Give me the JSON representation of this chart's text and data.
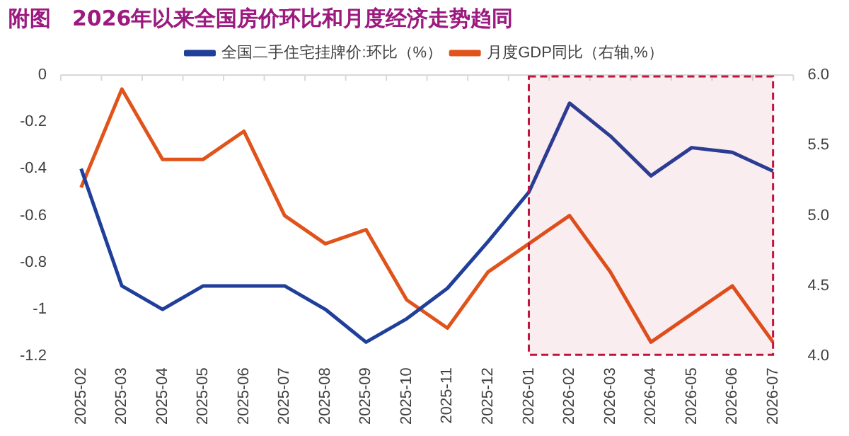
{
  "chart_data": {
    "type": "line",
    "title": "附图　2026年以来全国房价环比和月度经济走势趋同",
    "categories": [
      "2025-02",
      "2025-03",
      "2025-04",
      "2025-05",
      "2025-06",
      "2025-07",
      "2025-08",
      "2025-09",
      "2025-10",
      "2025-11",
      "2025-12",
      "2026-01",
      "2026-02",
      "2026-03",
      "2026-04",
      "2026-05",
      "2026-06",
      "2026-07"
    ],
    "series": [
      {
        "name": "全国二手住宅挂牌价:环比（%）",
        "color": "#203f9a",
        "values": [
          -0.4,
          -0.9,
          -1.0,
          -0.9,
          -0.9,
          -0.9,
          -1.0,
          -1.14,
          -1.04,
          -0.91,
          -0.71,
          -0.5,
          -0.12,
          -0.26,
          -0.43,
          -0.31,
          -0.33,
          -0.41
        ]
      },
      {
        "name": "月度GDP同比（右轴,%）",
        "color": "#e0531a",
        "axis": "y2",
        "values": [
          5.2,
          5.9,
          5.4,
          5.4,
          5.6,
          5.0,
          4.8,
          4.9,
          4.4,
          4.2,
          4.6,
          4.8,
          5.0,
          4.6,
          4.1,
          4.3,
          4.5,
          4.1
        ]
      }
    ],
    "ylim": [
      -1.2,
      0
    ],
    "yticks": [
      0,
      -0.2,
      -0.4,
      -0.6,
      -0.8,
      -1,
      -1.2
    ],
    "y2lim": [
      4.0,
      6.0
    ],
    "y2ticks": [
      {
        "value": 6,
        "label": "6.0"
      },
      5.5,
      {
        "value": 5,
        "label": "5.0"
      },
      4.5,
      {
        "value": 4,
        "label": "4.0"
      }
    ],
    "ref_lines": [
      {
        "axis": "y",
        "value": 0,
        "color": "#d9d9d9"
      }
    ],
    "bands": [
      {
        "axis": "x",
        "from": "2026-01",
        "to": "2026-07",
        "color": "#c0143c"
      }
    ],
    "grid": false,
    "legend": "top",
    "marker": "none",
    "line_style": "solid"
  }
}
